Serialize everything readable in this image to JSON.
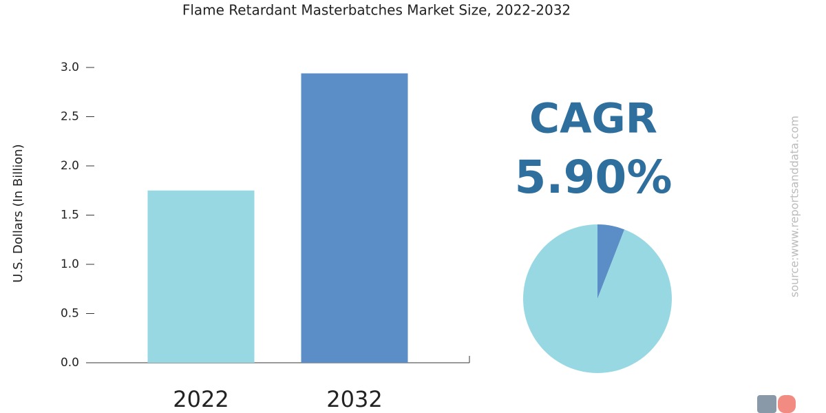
{
  "chart_data": [
    {
      "type": "bar",
      "title": "Flame Retardant Masterbatches Market Size, 2022-2032",
      "y_label": "U.S. Dollars (In Billion)",
      "categories": [
        "2022",
        "2032"
      ],
      "values": [
        1.75,
        2.94
      ],
      "colors": [
        "#98d8e3",
        "#5b8ec6"
      ],
      "ylim": [
        0,
        3
      ],
      "yticks": [
        {
          "value": 0,
          "label": "0.0"
        },
        0.5,
        {
          "value": 1,
          "label": "1.0"
        },
        1.5,
        {
          "value": 2,
          "label": "2.0"
        },
        2.5,
        {
          "value": 3,
          "label": "3.0"
        }
      ],
      "grid": false
    },
    {
      "type": "pie",
      "title": "CAGR",
      "values": [
        5.9,
        94.1
      ],
      "value_labels": [
        "5.90%",
        null
      ],
      "colors": [
        "#5b8ec6",
        "#98d8e3"
      ],
      "source": "source:www.reportsanddata.com"
    }
  ]
}
